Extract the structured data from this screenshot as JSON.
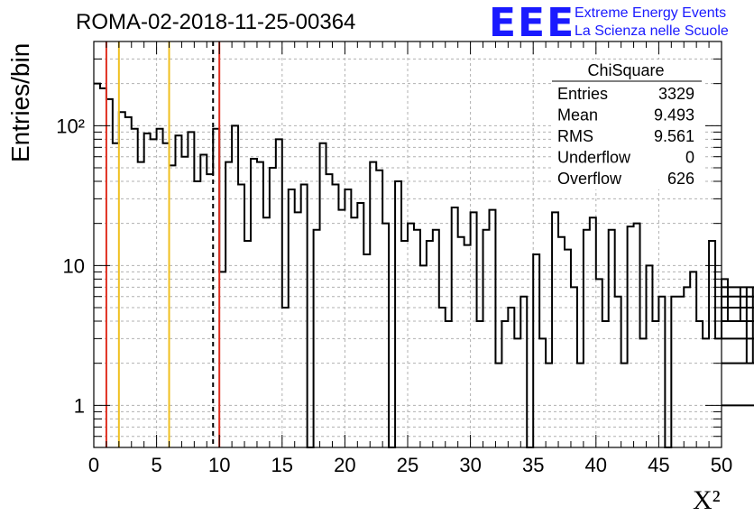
{
  "chart_data": {
    "type": "bar",
    "title": "ROMA-02-2018-11-25-00364",
    "xlabel": "X²",
    "ylabel": "Entries/bin",
    "xlim": [
      0,
      50
    ],
    "ylim": [
      0.5,
      400
    ],
    "y_scale": "log",
    "grid": true,
    "x_ticks": [
      "0",
      "5",
      "10",
      "15",
      "20",
      "25",
      "30",
      "35",
      "40",
      "45",
      "50"
    ],
    "y_ticks": [
      "1",
      "10",
      "10²"
    ],
    "bin_width": 0.5,
    "values": [
      200,
      185,
      155,
      75,
      125,
      115,
      95,
      55,
      88,
      80,
      95,
      75,
      52,
      85,
      60,
      90,
      40,
      62,
      45,
      95,
      9,
      55,
      100,
      38,
      15,
      58,
      55,
      22,
      50,
      80,
      5,
      35,
      24,
      38,
      0,
      18,
      75,
      45,
      38,
      25,
      35,
      22,
      28,
      12,
      55,
      48,
      20,
      0,
      40,
      15,
      20,
      18,
      10,
      15,
      18,
      5,
      4,
      26,
      16,
      14,
      24,
      4,
      18,
      25,
      2,
      4,
      5,
      3,
      6,
      0,
      12,
      3,
      2,
      24,
      16,
      13,
      7,
      2,
      18,
      22,
      8,
      4,
      18,
      6,
      2,
      19,
      20,
      3,
      10,
      4,
      6,
      0,
      6,
      6,
      7,
      9,
      4,
      3,
      15,
      3,
      8,
      4,
      4,
      7,
      2,
      7,
      7,
      4,
      5,
      2,
      2,
      2,
      4,
      4,
      3,
      5,
      2,
      5,
      2,
      1,
      6,
      1,
      2,
      6,
      4,
      2,
      3,
      4,
      4,
      2,
      4,
      4,
      5,
      3,
      6,
      4,
      3,
      1,
      1,
      1,
      1
    ],
    "vlines": [
      {
        "x": 1,
        "color": "#e03020",
        "style": "solid"
      },
      {
        "x": 2,
        "color": "#f0c020",
        "style": "solid"
      },
      {
        "x": 6,
        "color": "#f0c020",
        "style": "solid"
      },
      {
        "x": 9.5,
        "color": "#000000",
        "style": "dashed"
      },
      {
        "x": 10,
        "color": "#e03020",
        "style": "solid"
      }
    ],
    "legend": "top-right"
  },
  "stats": {
    "title": "ChiSquare",
    "rows": [
      {
        "label": "Entries",
        "value": "3329"
      },
      {
        "label": "Mean",
        "value": "9.493"
      },
      {
        "label": "RMS",
        "value": "9.561"
      },
      {
        "label": "Underflow",
        "value": "0"
      },
      {
        "label": "Overflow",
        "value": "626"
      }
    ]
  },
  "logo": {
    "big": "EEE",
    "line1": "Extreme Energy Events",
    "line2": "La Scienza nelle Scuole",
    "color": "#1a1aff"
  }
}
